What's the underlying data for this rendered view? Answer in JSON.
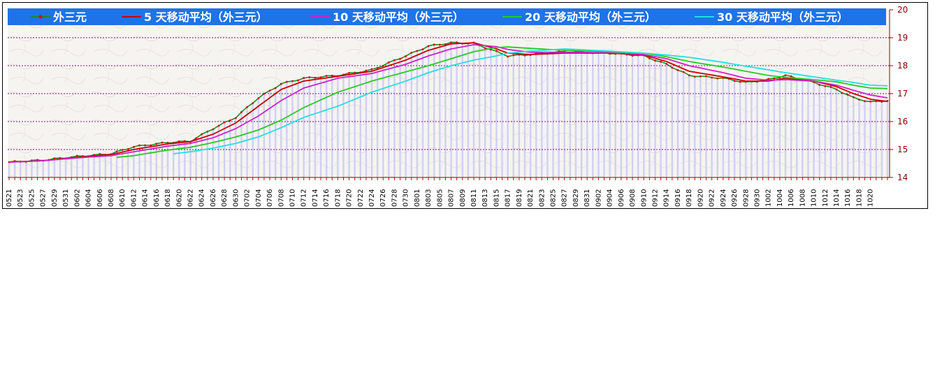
{
  "chart_data": {
    "type": "line",
    "title": "",
    "xlabel": "",
    "ylabel": "",
    "ylim": [
      14,
      20
    ],
    "y_ticks": [
      "20",
      "19",
      "18",
      "17",
      "16",
      "15",
      "14"
    ],
    "grid": "horizontal dashed",
    "legend_position": "top",
    "legend": [
      {
        "label": "外三元",
        "color": "#1e8a1e",
        "marker": true
      },
      {
        "label": "5 天移动平均（外三元）",
        "color": "#cc0000"
      },
      {
        "label": "10 天移动平均（外三元）",
        "color": "#cc22cc"
      },
      {
        "label": "20 天移动平均（外三元）",
        "color": "#22cc22"
      },
      {
        "label": "30 天移动平均（外三元）",
        "color": "#22e0e0"
      }
    ],
    "x_tick_labels": [
      "0521",
      "0523",
      "0525",
      "0527",
      "0529",
      "0531",
      "0602",
      "0604",
      "0606",
      "0608",
      "0610",
      "0612",
      "0614",
      "0616",
      "0618",
      "0620",
      "0622",
      "0624",
      "0626",
      "0628",
      "0630",
      "0702",
      "0704",
      "0706",
      "0708",
      "0710",
      "0712",
      "0714",
      "0716",
      "0718",
      "0720",
      "0722",
      "0724",
      "0726",
      "0728",
      "0730",
      "0801",
      "0803",
      "0805",
      "0807",
      "0809",
      "0811",
      "0813",
      "0815",
      "0817",
      "0819",
      "0821",
      "0823",
      "0825",
      "0827",
      "0829",
      "0831",
      "0902",
      "0904",
      "0906",
      "0908",
      "0910",
      "0912",
      "0914",
      "0916",
      "0918",
      "0920",
      "0922",
      "0924",
      "0926",
      "0928",
      "0930",
      "1002",
      "1004",
      "1006",
      "1008",
      "1010",
      "1012",
      "1014",
      "1016",
      "1018",
      "1020"
    ],
    "x_tick_positions": [
      0,
      2,
      4,
      6,
      8,
      10,
      12,
      14,
      16,
      18,
      20,
      22,
      24,
      26,
      28,
      30,
      32,
      34,
      36,
      38,
      40,
      42,
      44,
      46,
      48,
      50,
      52,
      54,
      56,
      58,
      60,
      62,
      64,
      66,
      68,
      70,
      72,
      74,
      76,
      78,
      80,
      82,
      84,
      86,
      88,
      90,
      92,
      94,
      96,
      98,
      100,
      102,
      104,
      106,
      108,
      110,
      112,
      114,
      116,
      118,
      120,
      122,
      124,
      126,
      128,
      130,
      132,
      134,
      136,
      138,
      140,
      142,
      144,
      146,
      148,
      150,
      152
    ],
    "x_count": 156,
    "series": [
      {
        "name": "外三元",
        "color": "#1e8a1e",
        "anchors": [
          [
            0,
            14.55
          ],
          [
            6,
            14.62
          ],
          [
            12,
            14.75
          ],
          [
            18,
            14.85
          ],
          [
            22,
            15.1
          ],
          [
            28,
            15.25
          ],
          [
            32,
            15.3
          ],
          [
            36,
            15.75
          ],
          [
            40,
            16.15
          ],
          [
            44,
            16.85
          ],
          [
            48,
            17.35
          ],
          [
            52,
            17.55
          ],
          [
            58,
            17.65
          ],
          [
            64,
            17.85
          ],
          [
            70,
            18.35
          ],
          [
            74,
            18.7
          ],
          [
            78,
            18.82
          ],
          [
            82,
            18.8
          ],
          [
            86,
            18.5
          ],
          [
            88,
            18.35
          ],
          [
            92,
            18.4
          ],
          [
            98,
            18.5
          ],
          [
            106,
            18.45
          ],
          [
            112,
            18.35
          ],
          [
            116,
            18.05
          ],
          [
            120,
            17.65
          ],
          [
            126,
            17.55
          ],
          [
            130,
            17.4
          ],
          [
            134,
            17.5
          ],
          [
            137,
            17.65
          ],
          [
            142,
            17.4
          ],
          [
            146,
            17.15
          ],
          [
            149,
            16.85
          ],
          [
            152,
            16.7
          ],
          [
            155,
            16.75
          ]
        ]
      },
      {
        "name": "5 天移动平均（外三元）",
        "color": "#cc0000",
        "anchors": [
          [
            0,
            14.55
          ],
          [
            6,
            14.6
          ],
          [
            12,
            14.72
          ],
          [
            18,
            14.82
          ],
          [
            22,
            15.0
          ],
          [
            28,
            15.2
          ],
          [
            32,
            15.28
          ],
          [
            36,
            15.55
          ],
          [
            40,
            15.95
          ],
          [
            44,
            16.55
          ],
          [
            48,
            17.15
          ],
          [
            52,
            17.45
          ],
          [
            58,
            17.62
          ],
          [
            64,
            17.8
          ],
          [
            70,
            18.2
          ],
          [
            74,
            18.55
          ],
          [
            78,
            18.78
          ],
          [
            82,
            18.82
          ],
          [
            86,
            18.6
          ],
          [
            88,
            18.45
          ],
          [
            92,
            18.4
          ],
          [
            98,
            18.45
          ],
          [
            106,
            18.45
          ],
          [
            112,
            18.38
          ],
          [
            116,
            18.15
          ],
          [
            120,
            17.8
          ],
          [
            126,
            17.6
          ],
          [
            130,
            17.45
          ],
          [
            134,
            17.45
          ],
          [
            137,
            17.55
          ],
          [
            142,
            17.45
          ],
          [
            146,
            17.25
          ],
          [
            149,
            17.0
          ],
          [
            152,
            16.8
          ],
          [
            155,
            16.72
          ]
        ]
      },
      {
        "name": "10 天移动平均（外三元）",
        "color": "#cc22cc",
        "anchors": [
          [
            0,
            14.55
          ],
          [
            6,
            14.6
          ],
          [
            12,
            14.7
          ],
          [
            18,
            14.78
          ],
          [
            22,
            14.92
          ],
          [
            28,
            15.12
          ],
          [
            32,
            15.22
          ],
          [
            36,
            15.42
          ],
          [
            40,
            15.75
          ],
          [
            44,
            16.2
          ],
          [
            48,
            16.75
          ],
          [
            52,
            17.2
          ],
          [
            58,
            17.55
          ],
          [
            64,
            17.72
          ],
          [
            70,
            18.05
          ],
          [
            74,
            18.35
          ],
          [
            78,
            18.6
          ],
          [
            82,
            18.75
          ],
          [
            86,
            18.68
          ],
          [
            88,
            18.58
          ],
          [
            92,
            18.48
          ],
          [
            98,
            18.48
          ],
          [
            106,
            18.47
          ],
          [
            112,
            18.4
          ],
          [
            116,
            18.25
          ],
          [
            120,
            18.0
          ],
          [
            126,
            17.75
          ],
          [
            130,
            17.55
          ],
          [
            134,
            17.48
          ],
          [
            137,
            17.5
          ],
          [
            142,
            17.45
          ],
          [
            146,
            17.3
          ],
          [
            149,
            17.12
          ],
          [
            152,
            16.95
          ],
          [
            155,
            16.85
          ]
        ]
      },
      {
        "name": "20 天移动平均（外三元）",
        "color": "#22cc22",
        "anchors": [
          [
            19,
            14.72
          ],
          [
            22,
            14.78
          ],
          [
            28,
            14.98
          ],
          [
            32,
            15.08
          ],
          [
            36,
            15.25
          ],
          [
            40,
            15.45
          ],
          [
            44,
            15.7
          ],
          [
            48,
            16.05
          ],
          [
            52,
            16.5
          ],
          [
            58,
            17.05
          ],
          [
            64,
            17.45
          ],
          [
            70,
            17.78
          ],
          [
            74,
            18.0
          ],
          [
            78,
            18.25
          ],
          [
            82,
            18.5
          ],
          [
            86,
            18.65
          ],
          [
            88,
            18.67
          ],
          [
            92,
            18.62
          ],
          [
            98,
            18.55
          ],
          [
            106,
            18.5
          ],
          [
            112,
            18.45
          ],
          [
            116,
            18.32
          ],
          [
            120,
            18.15
          ],
          [
            126,
            17.95
          ],
          [
            130,
            17.8
          ],
          [
            134,
            17.65
          ],
          [
            137,
            17.58
          ],
          [
            142,
            17.5
          ],
          [
            146,
            17.42
          ],
          [
            149,
            17.3
          ],
          [
            152,
            17.2
          ],
          [
            155,
            17.18
          ]
        ]
      },
      {
        "name": "30 天移动平均（外三元）",
        "color": "#22e0e0",
        "anchors": [
          [
            29,
            14.85
          ],
          [
            32,
            14.92
          ],
          [
            36,
            15.05
          ],
          [
            40,
            15.22
          ],
          [
            44,
            15.45
          ],
          [
            48,
            15.78
          ],
          [
            52,
            16.15
          ],
          [
            58,
            16.55
          ],
          [
            64,
            17.05
          ],
          [
            70,
            17.45
          ],
          [
            74,
            17.75
          ],
          [
            78,
            18.0
          ],
          [
            82,
            18.2
          ],
          [
            86,
            18.35
          ],
          [
            88,
            18.45
          ],
          [
            92,
            18.52
          ],
          [
            98,
            18.6
          ],
          [
            106,
            18.52
          ],
          [
            112,
            18.45
          ],
          [
            116,
            18.38
          ],
          [
            120,
            18.3
          ],
          [
            126,
            18.12
          ],
          [
            130,
            17.98
          ],
          [
            134,
            17.85
          ],
          [
            137,
            17.75
          ],
          [
            142,
            17.6
          ],
          [
            146,
            17.48
          ],
          [
            149,
            17.4
          ],
          [
            152,
            17.3
          ],
          [
            155,
            17.28
          ]
        ]
      }
    ]
  }
}
